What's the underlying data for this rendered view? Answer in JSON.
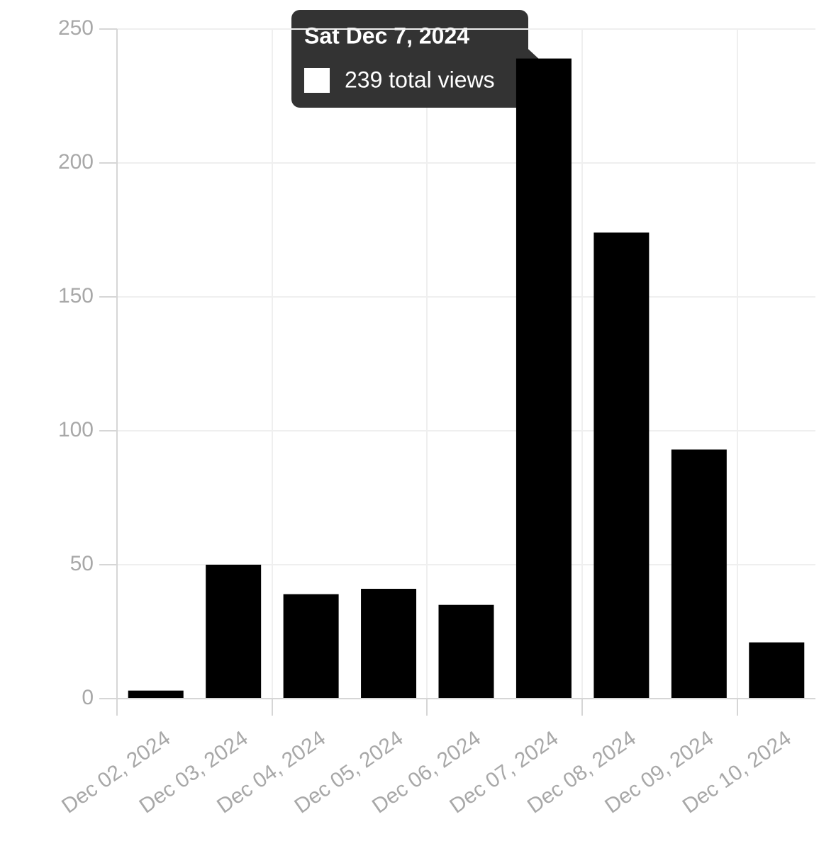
{
  "chart_data": {
    "type": "bar",
    "categories": [
      "Dec 02, 2024",
      "Dec 03, 2024",
      "Dec 04, 2024",
      "Dec 05, 2024",
      "Dec 06, 2024",
      "Dec 07, 2024",
      "Dec 08, 2024",
      "Dec 09, 2024",
      "Dec 10, 2024"
    ],
    "values": [
      3,
      50,
      39,
      41,
      35,
      239,
      174,
      93,
      21
    ],
    "color": "#000000",
    "ylim": [
      0,
      250
    ],
    "yticks": [
      0,
      50,
      100,
      150,
      200,
      250
    ],
    "grid": true
  },
  "tooltip": {
    "title": "Sat Dec 7, 2024",
    "label": "239 total views"
  }
}
